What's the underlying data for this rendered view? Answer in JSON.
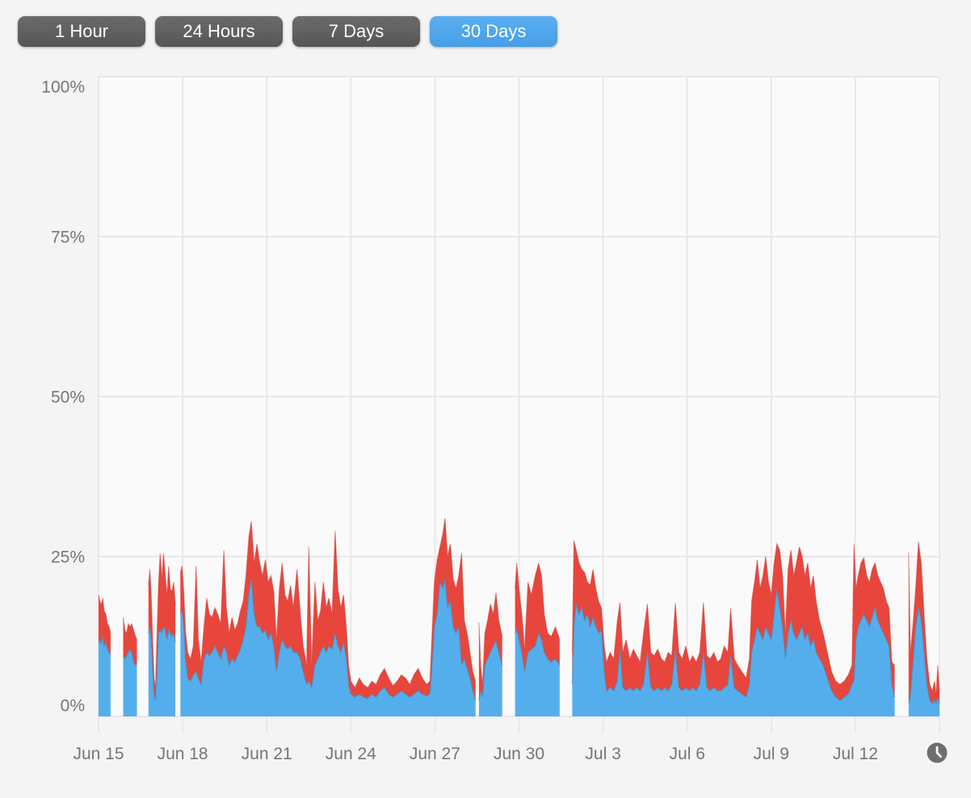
{
  "page": {
    "background": "#F4F4F5"
  },
  "toolbar": {
    "inactive_bg": "#5B5B5D",
    "active_bg": "#48A5F0",
    "text_color": "#FFFFFF",
    "buttons": [
      {
        "label": "1 Hour",
        "active": false
      },
      {
        "label": "24 Hours",
        "active": false
      },
      {
        "label": "7 Days",
        "active": false
      },
      {
        "label": "30 Days",
        "active": true
      }
    ]
  },
  "footer": {
    "clock_icon": {
      "name": "clock-icon",
      "color": "#6E6E70",
      "hands_color": "#FFFFFF"
    }
  },
  "chart_data": {
    "type": "area",
    "stacked": true,
    "title": "",
    "xlabel": "",
    "ylabel": "",
    "x_unit": "days since Jun 15",
    "x_range_days": [
      0,
      30
    ],
    "ylim": [
      0,
      100
    ],
    "grid": true,
    "legend": "none",
    "plot_background": "#FAFAFA",
    "gridline_color": "#E8E8EA",
    "axis_label_color": "#747678",
    "y_ticks": [
      {
        "v": 100,
        "label": "100%"
      },
      {
        "v": 75,
        "label": "75%"
      },
      {
        "v": 50,
        "label": "50%"
      },
      {
        "v": 25,
        "label": "25%"
      },
      {
        "v": 0,
        "label": "0%"
      }
    ],
    "x_ticks": [
      {
        "day": 0,
        "label": "Jun 15"
      },
      {
        "day": 3,
        "label": "Jun 18"
      },
      {
        "day": 6,
        "label": "Jun 21"
      },
      {
        "day": 9,
        "label": "Jun 24"
      },
      {
        "day": 12,
        "label": "Jun 27"
      },
      {
        "day": 15,
        "label": "Jun 30"
      },
      {
        "day": 18,
        "label": "Jul 3"
      },
      {
        "day": 21,
        "label": "Jul 6"
      },
      {
        "day": 24,
        "label": "Jul 9"
      },
      {
        "day": 27,
        "label": "Jul 12"
      }
    ],
    "x_gridline_days": [
      0,
      3,
      6,
      9,
      12,
      15,
      18,
      21,
      24,
      27,
      30
    ],
    "series": [
      {
        "id": "blue-area",
        "color": "#55AEEC",
        "edge": "#3E85B8"
      },
      {
        "id": "red-area",
        "color": "#E8463C",
        "edge": "#C03A32"
      }
    ],
    "points_format": "[day, blue_top_pct, total_top_pct], null = gap in data",
    "points": [
      [
        0.0,
        11.5,
        19.0
      ],
      [
        0.05,
        12.0,
        18.0
      ],
      [
        0.1,
        11.5,
        17.5
      ],
      [
        0.15,
        12.5,
        18.5
      ],
      [
        0.2,
        11.0,
        16.5
      ],
      [
        0.26,
        11.5,
        16.0
      ],
      [
        0.32,
        10.5,
        14.5
      ],
      [
        0.38,
        10.0,
        14.0
      ],
      [
        0.43,
        9.5,
        13.0
      ],
      null,
      [
        0.88,
        9.5,
        15.5
      ],
      [
        0.94,
        9.0,
        13.5
      ],
      [
        1.0,
        9.5,
        13.0
      ],
      [
        1.06,
        10.0,
        14.5
      ],
      [
        1.12,
        10.5,
        14.0
      ],
      [
        1.18,
        10.0,
        14.5
      ],
      [
        1.25,
        8.5,
        13.5
      ],
      [
        1.32,
        8.0,
        12.5
      ],
      [
        1.37,
        8.0,
        12.0
      ],
      null,
      [
        1.78,
        13.0,
        20.5
      ],
      [
        1.83,
        14.0,
        23.0
      ],
      [
        1.88,
        12.0,
        19.0
      ],
      [
        1.93,
        7.0,
        12.0
      ],
      [
        1.98,
        3.5,
        6.0
      ],
      [
        2.03,
        2.5,
        4.5
      ],
      [
        2.08,
        7.0,
        12.0
      ],
      [
        2.14,
        13.0,
        21.0
      ],
      [
        2.2,
        13.5,
        25.5
      ],
      [
        2.26,
        13.0,
        21.5
      ],
      [
        2.32,
        14.0,
        25.5
      ],
      [
        2.38,
        13.5,
        22.0
      ],
      [
        2.44,
        12.0,
        19.0
      ],
      [
        2.5,
        13.5,
        23.5
      ],
      [
        2.56,
        13.0,
        20.0
      ],
      [
        2.62,
        12.5,
        19.5
      ],
      [
        2.68,
        13.0,
        21.0
      ],
      [
        2.74,
        11.5,
        17.5
      ],
      null,
      [
        2.92,
        16.0,
        22.5
      ],
      [
        2.98,
        16.5,
        23.5
      ],
      [
        3.04,
        14.0,
        19.5
      ],
      [
        3.1,
        9.0,
        13.5
      ],
      [
        3.18,
        6.0,
        10.0
      ],
      [
        3.28,
        5.5,
        9.0
      ],
      [
        3.38,
        6.5,
        11.0
      ],
      [
        3.48,
        7.0,
        23.5
      ],
      [
        3.56,
        6.0,
        12.0
      ],
      [
        3.66,
        5.0,
        8.5
      ],
      [
        3.76,
        9.0,
        14.0
      ],
      [
        3.86,
        10.0,
        18.5
      ],
      [
        3.95,
        9.5,
        16.0
      ],
      [
        4.05,
        10.0,
        15.5
      ],
      [
        4.15,
        11.0,
        17.0
      ],
      [
        4.25,
        10.0,
        16.0
      ],
      [
        4.36,
        9.0,
        14.5
      ],
      [
        4.47,
        11.0,
        26.0
      ],
      [
        4.56,
        10.0,
        17.0
      ],
      [
        4.66,
        8.0,
        13.0
      ],
      [
        4.76,
        9.0,
        15.5
      ],
      [
        4.86,
        8.5,
        13.5
      ],
      [
        4.96,
        9.5,
        14.5
      ],
      [
        5.06,
        10.5,
        16.5
      ],
      [
        5.16,
        12.0,
        18.0
      ],
      [
        5.26,
        14.0,
        22.0
      ],
      [
        5.36,
        19.0,
        28.0
      ],
      [
        5.45,
        21.5,
        30.5
      ],
      [
        5.55,
        16.0,
        24.0
      ],
      [
        5.65,
        14.0,
        27.0
      ],
      [
        5.75,
        14.0,
        24.0
      ],
      [
        5.85,
        13.0,
        22.0
      ],
      [
        5.95,
        13.5,
        24.5
      ],
      [
        6.05,
        12.0,
        21.0
      ],
      [
        6.15,
        13.0,
        22.0
      ],
      [
        6.25,
        11.0,
        19.5
      ],
      [
        6.35,
        7.0,
        12.0
      ],
      [
        6.45,
        10.0,
        20.0
      ],
      [
        6.55,
        12.0,
        24.0
      ],
      [
        6.65,
        11.0,
        19.0
      ],
      [
        6.75,
        10.5,
        18.0
      ],
      [
        6.85,
        11.0,
        20.5
      ],
      [
        6.95,
        10.0,
        17.0
      ],
      [
        7.08,
        10.0,
        23.0
      ],
      [
        7.2,
        9.0,
        16.0
      ],
      [
        7.3,
        7.0,
        11.0
      ],
      [
        7.42,
        5.0,
        8.0
      ],
      [
        7.5,
        5.5,
        26.5
      ],
      [
        7.6,
        4.5,
        8.0
      ],
      [
        7.72,
        8.0,
        21.0
      ],
      [
        7.82,
        9.0,
        15.0
      ],
      [
        7.92,
        10.0,
        16.5
      ],
      [
        8.02,
        11.0,
        21.0
      ],
      [
        8.12,
        10.0,
        17.0
      ],
      [
        8.22,
        11.0,
        18.5
      ],
      [
        8.33,
        10.5,
        16.0
      ],
      [
        8.44,
        13.0,
        29.0
      ],
      [
        8.54,
        11.0,
        20.0
      ],
      [
        8.64,
        10.0,
        17.0
      ],
      [
        8.74,
        11.5,
        19.0
      ],
      [
        8.84,
        9.0,
        14.0
      ],
      [
        8.92,
        5.0,
        8.0
      ],
      [
        9.0,
        3.5,
        5.5
      ],
      [
        9.15,
        3.0,
        4.5
      ],
      [
        9.3,
        3.5,
        6.0
      ],
      [
        9.45,
        3.0,
        5.0
      ],
      [
        9.6,
        2.8,
        4.5
      ],
      [
        9.75,
        3.5,
        5.5
      ],
      [
        9.9,
        3.0,
        5.0
      ],
      [
        10.05,
        4.0,
        6.5
      ],
      [
        10.2,
        4.5,
        7.5
      ],
      [
        10.35,
        3.5,
        6.0
      ],
      [
        10.5,
        3.0,
        4.8
      ],
      [
        10.65,
        3.5,
        5.5
      ],
      [
        10.8,
        4.0,
        6.5
      ],
      [
        10.95,
        3.5,
        6.0
      ],
      [
        11.1,
        3.0,
        5.0
      ],
      [
        11.25,
        3.5,
        6.5
      ],
      [
        11.4,
        4.0,
        7.5
      ],
      [
        11.55,
        3.5,
        6.0
      ],
      [
        11.7,
        3.2,
        5.0
      ],
      [
        11.82,
        3.5,
        5.5
      ],
      [
        11.9,
        8.0,
        13.0
      ],
      [
        11.98,
        14.0,
        21.0
      ],
      [
        12.08,
        16.0,
        24.5
      ],
      [
        12.18,
        21.0,
        26.5
      ],
      [
        12.28,
        20.0,
        28.5
      ],
      [
        12.36,
        21.5,
        31.0
      ],
      [
        12.45,
        17.0,
        25.0
      ],
      [
        12.55,
        18.0,
        27.0
      ],
      [
        12.65,
        14.0,
        21.5
      ],
      [
        12.75,
        13.0,
        20.0
      ],
      [
        12.85,
        14.0,
        22.0
      ],
      [
        12.95,
        8.0,
        25.5
      ],
      [
        13.05,
        9.0,
        15.0
      ],
      [
        13.15,
        7.5,
        13.0
      ],
      [
        13.25,
        6.0,
        10.0
      ],
      [
        13.35,
        4.0,
        7.0
      ],
      [
        13.45,
        2.5,
        5.5
      ],
      null,
      [
        13.57,
        2.5,
        14.7
      ],
      [
        13.63,
        4.0,
        8.0
      ],
      [
        13.7,
        3.0,
        5.0
      ],
      [
        13.78,
        8.0,
        13.0
      ],
      [
        13.88,
        9.0,
        15.0
      ],
      [
        13.98,
        10.0,
        17.6
      ],
      [
        14.08,
        11.0,
        16.0
      ],
      [
        14.18,
        11.8,
        19.3
      ],
      [
        14.28,
        10.0,
        15.0
      ],
      [
        14.4,
        8.0,
        12.5
      ],
      null,
      [
        14.86,
        13.0,
        20.0
      ],
      [
        14.92,
        13.5,
        24.0
      ],
      [
        15.0,
        12.0,
        20.0
      ],
      [
        15.1,
        10.0,
        16.0
      ],
      [
        15.2,
        7.0,
        10.5
      ],
      [
        15.32,
        10.0,
        21.0
      ],
      [
        15.44,
        10.5,
        19.0
      ],
      [
        15.58,
        11.0,
        22.0
      ],
      [
        15.7,
        13.0,
        24.0
      ],
      [
        15.8,
        12.0,
        22.0
      ],
      [
        15.9,
        10.0,
        16.0
      ],
      [
        16.02,
        9.0,
        13.0
      ],
      [
        16.15,
        8.5,
        12.5
      ],
      [
        16.3,
        9.0,
        14.0
      ],
      [
        16.45,
        8.0,
        12.0
      ],
      null,
      [
        16.9,
        5.0,
        10.0
      ],
      [
        16.96,
        14.0,
        27.5
      ],
      [
        17.04,
        17.6,
        26.0
      ],
      [
        17.14,
        16.0,
        24.0
      ],
      [
        17.24,
        17.0,
        23.0
      ],
      [
        17.34,
        15.0,
        22.5
      ],
      [
        17.44,
        16.0,
        21.0
      ],
      [
        17.54,
        14.0,
        20.5
      ],
      [
        17.64,
        15.5,
        23.0
      ],
      [
        17.74,
        14.0,
        20.0
      ],
      [
        17.84,
        13.0,
        18.0
      ],
      [
        17.94,
        13.5,
        17.0
      ],
      [
        18.04,
        7.0,
        11.0
      ],
      [
        18.12,
        4.0,
        8.5
      ],
      [
        18.25,
        4.5,
        10.0
      ],
      [
        18.38,
        4.0,
        9.0
      ],
      [
        18.5,
        5.5,
        14.7
      ],
      [
        18.6,
        10.5,
        17.8
      ],
      [
        18.7,
        4.5,
        10.0
      ],
      [
        18.82,
        4.0,
        12.0
      ],
      [
        18.95,
        4.5,
        9.0
      ],
      [
        19.08,
        4.0,
        10.5
      ],
      [
        19.2,
        4.5,
        9.5
      ],
      [
        19.32,
        4.0,
        8.5
      ],
      [
        19.44,
        5.0,
        13.0
      ],
      [
        19.58,
        10.0,
        17.6
      ],
      [
        19.7,
        4.5,
        10.0
      ],
      [
        19.82,
        4.0,
        9.5
      ],
      [
        19.95,
        4.5,
        10.5
      ],
      [
        20.08,
        4.0,
        9.0
      ],
      [
        20.2,
        4.5,
        8.5
      ],
      [
        20.32,
        4.0,
        10.0
      ],
      [
        20.45,
        5.0,
        9.5
      ],
      [
        20.58,
        10.5,
        17.7
      ],
      [
        20.7,
        4.5,
        10.0
      ],
      [
        20.82,
        4.0,
        9.0
      ],
      [
        20.95,
        4.5,
        11.0
      ],
      [
        21.08,
        4.0,
        8.5
      ],
      [
        21.2,
        4.5,
        9.5
      ],
      [
        21.32,
        4.0,
        8.5
      ],
      [
        21.45,
        5.0,
        10.0
      ],
      [
        21.58,
        10.0,
        17.8
      ],
      [
        21.7,
        4.5,
        9.5
      ],
      [
        21.82,
        4.0,
        9.0
      ],
      [
        21.95,
        4.5,
        10.0
      ],
      [
        22.08,
        4.0,
        8.5
      ],
      [
        22.2,
        4.0,
        9.0
      ],
      [
        22.32,
        4.5,
        11.0
      ],
      [
        22.45,
        5.0,
        10.0
      ],
      [
        22.55,
        9.5,
        16.9
      ],
      [
        22.68,
        4.5,
        9.0
      ],
      [
        22.8,
        4.0,
        8.0
      ],
      [
        22.95,
        3.5,
        7.0
      ],
      [
        23.1,
        3.0,
        6.0
      ],
      [
        23.22,
        5.0,
        9.0
      ],
      [
        23.3,
        10.0,
        18.0
      ],
      [
        23.4,
        12.0,
        21.0
      ],
      [
        23.5,
        14.0,
        24.5
      ],
      [
        23.6,
        13.0,
        20.0
      ],
      [
        23.7,
        12.0,
        22.0
      ],
      [
        23.8,
        14.0,
        25.0
      ],
      [
        23.9,
        13.0,
        21.0
      ],
      [
        24.0,
        12.0,
        19.0
      ],
      [
        24.1,
        16.0,
        24.0
      ],
      [
        24.2,
        20.0,
        27.0
      ],
      [
        24.3,
        17.0,
        26.0
      ],
      [
        24.4,
        14.0,
        22.0
      ],
      [
        24.5,
        9.0,
        13.0
      ],
      [
        24.6,
        13.0,
        23.0
      ],
      [
        24.7,
        15.0,
        26.0
      ],
      [
        24.8,
        13.0,
        22.0
      ],
      [
        24.9,
        12.0,
        24.0
      ],
      [
        25.0,
        13.0,
        26.5
      ],
      [
        25.1,
        14.0,
        25.0
      ],
      [
        25.2,
        12.0,
        22.0
      ],
      [
        25.3,
        13.0,
        24.0
      ],
      [
        25.4,
        11.0,
        20.0
      ],
      [
        25.5,
        12.0,
        22.0
      ],
      [
        25.6,
        10.0,
        18.0
      ],
      [
        25.72,
        9.0,
        15.0
      ],
      [
        25.85,
        8.0,
        13.0
      ],
      [
        26.0,
        6.0,
        10.0
      ],
      [
        26.15,
        4.0,
        7.0
      ],
      [
        26.3,
        3.0,
        5.5
      ],
      [
        26.45,
        2.5,
        5.0
      ],
      [
        26.6,
        3.0,
        5.5
      ],
      [
        26.75,
        3.5,
        6.5
      ],
      [
        26.88,
        5.0,
        8.0
      ],
      [
        26.95,
        5.5,
        27.0
      ],
      [
        27.02,
        12.0,
        20.0
      ],
      [
        27.1,
        14.0,
        22.0
      ],
      [
        27.2,
        15.0,
        24.0
      ],
      [
        27.3,
        16.0,
        24.8
      ],
      [
        27.4,
        15.0,
        22.0
      ],
      [
        27.5,
        14.0,
        21.0
      ],
      [
        27.6,
        15.5,
        23.0
      ],
      [
        27.7,
        17.0,
        24.0
      ],
      [
        27.8,
        15.0,
        22.0
      ],
      [
        27.9,
        14.0,
        21.0
      ],
      [
        28.0,
        13.0,
        20.0
      ],
      [
        28.1,
        12.0,
        18.0
      ],
      [
        28.2,
        11.0,
        17.0
      ],
      [
        28.3,
        5.0,
        8.5
      ],
      [
        28.4,
        3.0,
        8.0
      ],
      null,
      [
        28.9,
        2.0,
        25.6
      ],
      [
        28.96,
        3.0,
        10.0
      ],
      [
        29.05,
        8.0,
        14.0
      ],
      [
        29.15,
        14.0,
        20.0
      ],
      [
        29.25,
        17.0,
        27.3
      ],
      [
        29.35,
        15.0,
        24.0
      ],
      [
        29.45,
        10.0,
        16.0
      ],
      [
        29.55,
        5.0,
        9.0
      ],
      [
        29.65,
        2.5,
        5.0
      ],
      [
        29.75,
        2.0,
        4.0
      ],
      [
        29.82,
        2.5,
        5.5
      ],
      [
        29.88,
        2.0,
        3.5
      ],
      [
        29.94,
        3.0,
        8.0
      ],
      [
        30.0,
        2.0,
        3.5
      ]
    ]
  }
}
